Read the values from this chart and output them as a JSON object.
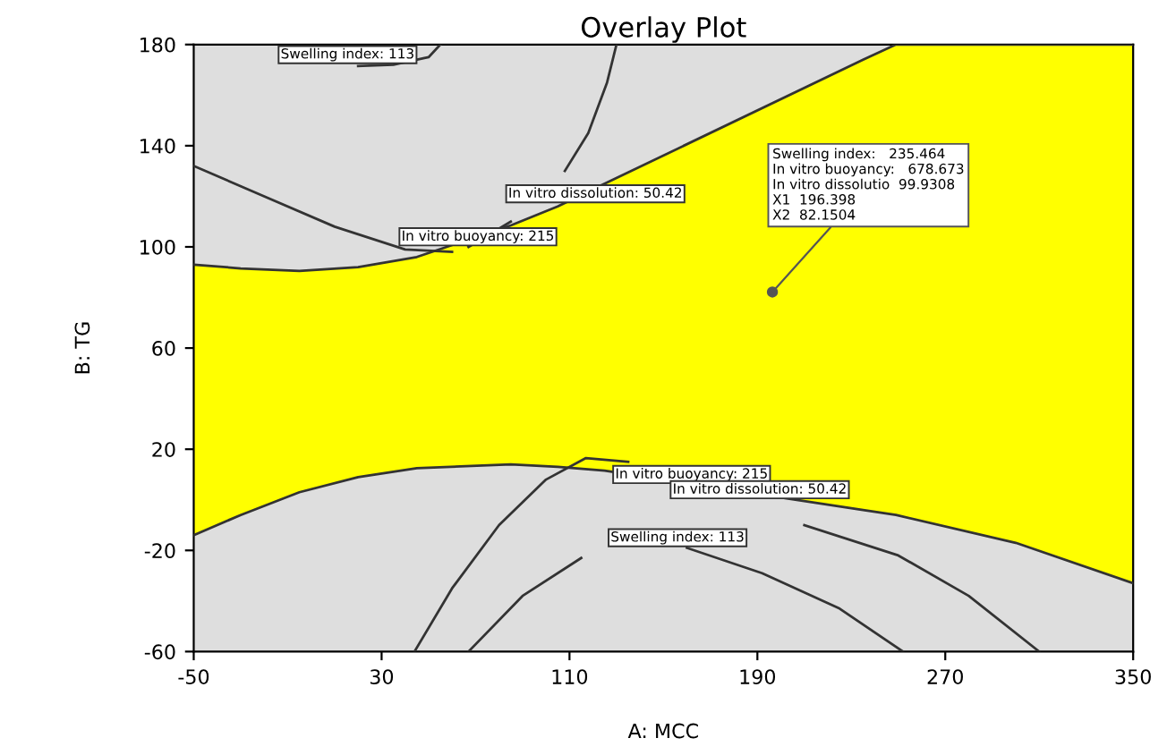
{
  "chart_data": {
    "type": "line",
    "title": "Overlay Plot",
    "xlabel": "A: MCC",
    "ylabel": "B: TG",
    "xlim": [
      -50,
      350
    ],
    "xticks": [
      -50,
      30,
      110,
      190,
      270,
      350
    ],
    "ylim": [
      -60,
      180
    ],
    "yticks": [
      -60,
      -20,
      20,
      60,
      100,
      140,
      180
    ],
    "grid": false,
    "legend": false,
    "series": [
      {
        "color": "#333333",
        "x": [
          -50,
          -30,
          -5,
          20,
          45,
          85,
          105,
          125,
          235,
          249,
          300,
          350
        ],
        "values": [
          93,
          91.5,
          90.5,
          92,
          96,
          108.5,
          116,
          125,
          174,
          180,
          180,
          180
        ],
        "lower": [
          -14,
          -6,
          3,
          9,
          12.5,
          14,
          13,
          11.5,
          -4,
          -6,
          -17,
          -33
        ],
        "upper": [
          93,
          91.5,
          90.5,
          92,
          96,
          108.5,
          116,
          125,
          174,
          180,
          180,
          180
        ]
      },
      {
        "color": "#333333",
        "x": [
          -50,
          -30,
          -5,
          20,
          45,
          85,
          105,
          125,
          235,
          249,
          300,
          350
        ],
        "values": [
          -14,
          -6,
          3,
          9,
          12.5,
          14,
          13,
          11.5,
          -4,
          -6,
          -17,
          -33
        ]
      },
      {
        "color": "#333333",
        "x": [
          -50,
          -20,
          10,
          40,
          60
        ],
        "values": [
          132,
          120,
          108,
          99,
          98
        ]
      },
      {
        "color": "#333333",
        "x": [
          67,
          85,
          100,
          108,
          118,
          126,
          130
        ],
        "values": [
          100,
          110,
          null,
          130,
          145,
          165,
          180
        ]
      },
      {
        "color": "#333333",
        "x": [
          20,
          35,
          50,
          55
        ],
        "values": [
          171.5,
          172,
          175,
          180
        ]
      },
      {
        "color": "#333333",
        "x": [
          44,
          60,
          80,
          100,
          117,
          135
        ],
        "values": [
          -60,
          -35,
          -10,
          8,
          16.5,
          15
        ]
      },
      {
        "color": "#333333",
        "x": [
          210,
          250,
          280,
          310
        ],
        "values": [
          -10,
          -22,
          -38,
          -60
        ]
      },
      {
        "color": "#333333",
        "x": [
          67,
          90,
          115,
          133,
          160,
          192,
          225,
          252
        ],
        "values": [
          -60,
          -38,
          -23,
          null,
          -19,
          -29,
          -43,
          -60
        ]
      },
      {
        "type": "scatter",
        "color": "#555555",
        "x": [
          196.398
        ],
        "values": [
          82.1504
        ]
      }
    ],
    "annotations": [
      "Swelling index: 113",
      "In vitro dissolution: 50.42",
      "In vitro buoyancy: 215",
      "In vitro buoyancy: 215",
      "In vitro dissolution: 50.42",
      "Swelling index: 113",
      {
        "text": "Swelling index:   235.464\nIn vitro buoyancy:   678.673\nIn vitro dissolutio  99.9308\nX1  196.398\nX2  82.1504",
        "x": 196.398,
        "y": 82.1504
      }
    ]
  }
}
